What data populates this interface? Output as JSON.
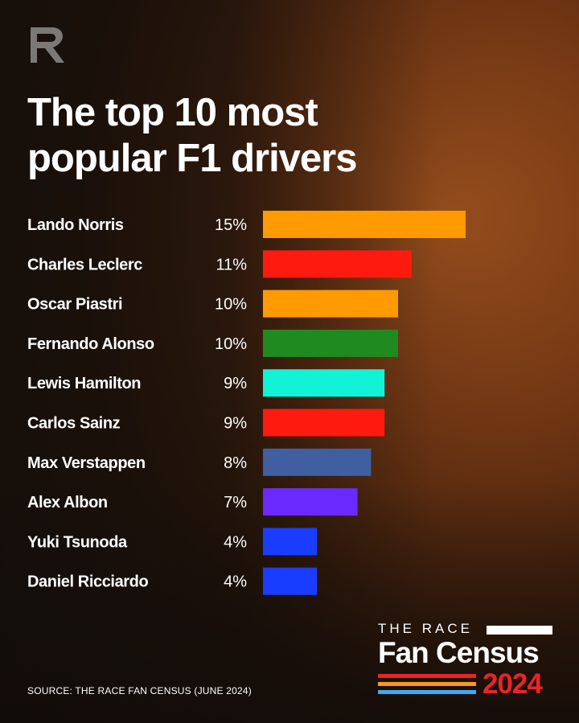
{
  "header": {
    "title": "The top 10 most popular F1 drivers"
  },
  "source": "SOURCE: THE RACE FAN CENSUS (JUNE 2024)",
  "brand": {
    "top": "THE RACE",
    "main": "Fan Census",
    "year": "2024",
    "accent_color": "#e8242a",
    "stripe_colors": [
      "#e8242a",
      "#f39a1e",
      "#3fa9f5"
    ]
  },
  "chart_data": {
    "type": "bar",
    "orientation": "horizontal",
    "title": "The top 10 most popular F1 drivers",
    "xlabel": "",
    "ylabel": "",
    "xlim": [
      0,
      15
    ],
    "grid": false,
    "categories": [
      "Lando Norris",
      "Charles Leclerc",
      "Oscar Piastri",
      "Fernando Alonso",
      "Lewis Hamilton",
      "Carlos Sainz",
      "Max Verstappen",
      "Alex Albon",
      "Yuki Tsunoda",
      "Daniel Ricciardo"
    ],
    "values": [
      15,
      11,
      10,
      10,
      9,
      9,
      8,
      7,
      4,
      4
    ],
    "value_labels": [
      "15%",
      "11%",
      "10%",
      "10%",
      "9%",
      "9%",
      "8%",
      "7%",
      "4%",
      "4%"
    ],
    "colors": [
      "#ff9a00",
      "#ff1a0f",
      "#ff9a00",
      "#1f8a1f",
      "#11f2d6",
      "#ff1a0f",
      "#3f5fa0",
      "#6a2aff",
      "#1a3cff",
      "#1a3cff"
    ]
  }
}
